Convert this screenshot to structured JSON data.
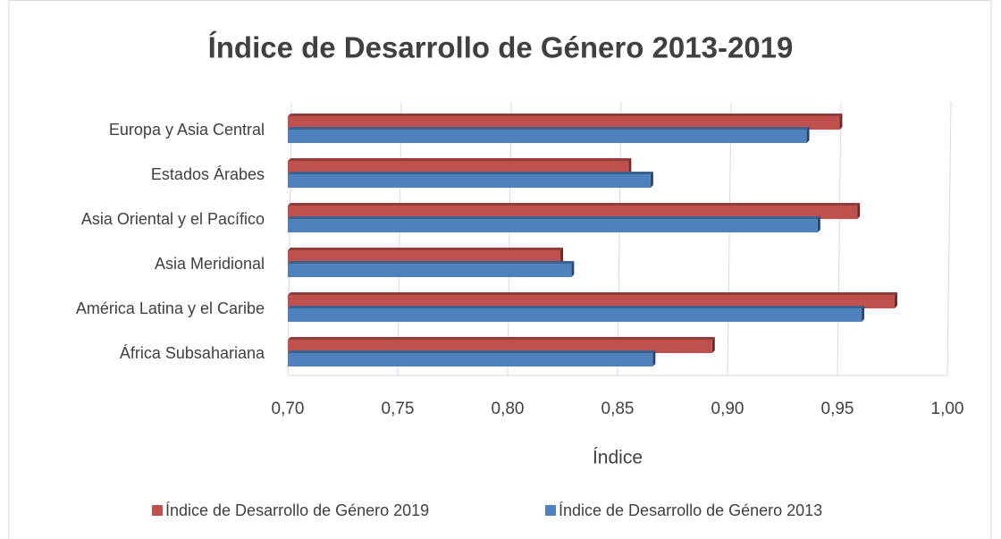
{
  "chart_data": {
    "type": "bar",
    "orientation": "horizontal",
    "title": "Índice de Desarrollo de Género 2013-2019",
    "x_label": "Índice",
    "categories": [
      "Europa y Asia Central",
      "Estados Árabes",
      "Asia Oriental y el Pacífico",
      "Asia Meridional",
      "América Latina y el Caribe",
      "África Subsahariana"
    ],
    "series": [
      {
        "name": "Índice de Desarrollo de Género 2019",
        "color": "#c0504d",
        "values": [
          0.951,
          0.855,
          0.959,
          0.824,
          0.976,
          0.893
        ]
      },
      {
        "name": "Índice de Desarrollo de Género 2013",
        "color": "#4f81bd",
        "values": [
          0.936,
          0.865,
          0.941,
          0.829,
          0.961,
          0.866
        ]
      }
    ],
    "xlim": [
      0.7,
      1.0
    ],
    "xticks": [
      {
        "value": 0.7,
        "label": "0,70"
      },
      {
        "value": 0.75,
        "label": "0,75"
      },
      {
        "value": 0.8,
        "label": "0,80"
      },
      {
        "value": 0.85,
        "label": "0,85"
      },
      {
        "value": 0.9,
        "label": "0,90"
      },
      {
        "value": 0.95,
        "label": "0,95"
      },
      {
        "value": 1.0,
        "label": "1,00"
      }
    ],
    "grid": true,
    "legend": "bottom"
  }
}
